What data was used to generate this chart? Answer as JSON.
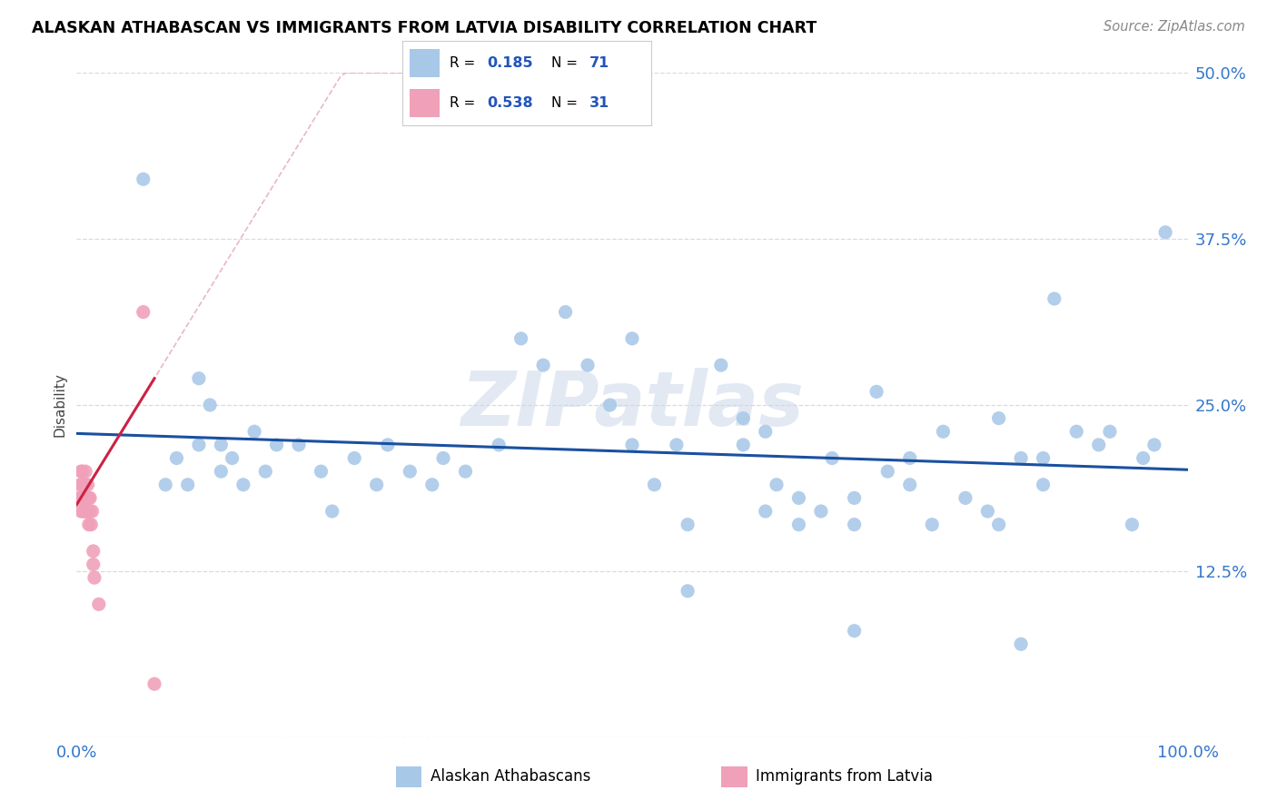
{
  "title": "ALASKAN ATHABASCAN VS IMMIGRANTS FROM LATVIA DISABILITY CORRELATION CHART",
  "source": "Source: ZipAtlas.com",
  "ylabel": "Disability",
  "r_blue": 0.185,
  "n_blue": 71,
  "r_pink": 0.538,
  "n_pink": 31,
  "blue_scatter_color": "#a8c8e8",
  "pink_scatter_color": "#f0a0b8",
  "trendline_blue_color": "#1a50a0",
  "trendline_pink_color": "#cc2244",
  "trendline_pink_dashed_color": "#e8b0bc",
  "legend_text_color": "#2255bb",
  "axis_tick_color": "#3377cc",
  "watermark": "ZIPatlas",
  "bg_color": "#ffffff",
  "grid_color": "#d4d4d4",
  "blue_points": [
    [
      0.06,
      0.42
    ],
    [
      0.08,
      0.19
    ],
    [
      0.09,
      0.21
    ],
    [
      0.1,
      0.19
    ],
    [
      0.11,
      0.22
    ],
    [
      0.11,
      0.27
    ],
    [
      0.12,
      0.25
    ],
    [
      0.13,
      0.22
    ],
    [
      0.13,
      0.2
    ],
    [
      0.14,
      0.21
    ],
    [
      0.15,
      0.19
    ],
    [
      0.16,
      0.23
    ],
    [
      0.17,
      0.2
    ],
    [
      0.18,
      0.22
    ],
    [
      0.2,
      0.22
    ],
    [
      0.22,
      0.2
    ],
    [
      0.23,
      0.17
    ],
    [
      0.25,
      0.21
    ],
    [
      0.27,
      0.19
    ],
    [
      0.28,
      0.22
    ],
    [
      0.3,
      0.2
    ],
    [
      0.32,
      0.19
    ],
    [
      0.33,
      0.21
    ],
    [
      0.35,
      0.2
    ],
    [
      0.38,
      0.22
    ],
    [
      0.4,
      0.3
    ],
    [
      0.42,
      0.28
    ],
    [
      0.44,
      0.32
    ],
    [
      0.46,
      0.28
    ],
    [
      0.48,
      0.25
    ],
    [
      0.5,
      0.22
    ],
    [
      0.5,
      0.3
    ],
    [
      0.52,
      0.19
    ],
    [
      0.54,
      0.22
    ],
    [
      0.55,
      0.16
    ],
    [
      0.55,
      0.11
    ],
    [
      0.58,
      0.28
    ],
    [
      0.6,
      0.24
    ],
    [
      0.6,
      0.22
    ],
    [
      0.62,
      0.23
    ],
    [
      0.63,
      0.19
    ],
    [
      0.65,
      0.16
    ],
    [
      0.65,
      0.18
    ],
    [
      0.67,
      0.17
    ],
    [
      0.68,
      0.21
    ],
    [
      0.7,
      0.16
    ],
    [
      0.7,
      0.18
    ],
    [
      0.72,
      0.26
    ],
    [
      0.73,
      0.2
    ],
    [
      0.75,
      0.19
    ],
    [
      0.75,
      0.21
    ],
    [
      0.77,
      0.16
    ],
    [
      0.78,
      0.23
    ],
    [
      0.8,
      0.18
    ],
    [
      0.82,
      0.17
    ],
    [
      0.83,
      0.24
    ],
    [
      0.83,
      0.16
    ],
    [
      0.85,
      0.21
    ],
    [
      0.87,
      0.21
    ],
    [
      0.87,
      0.19
    ],
    [
      0.88,
      0.33
    ],
    [
      0.9,
      0.23
    ],
    [
      0.92,
      0.22
    ],
    [
      0.93,
      0.23
    ],
    [
      0.95,
      0.16
    ],
    [
      0.96,
      0.21
    ],
    [
      0.97,
      0.22
    ],
    [
      0.98,
      0.38
    ],
    [
      0.62,
      0.17
    ],
    [
      0.7,
      0.08
    ],
    [
      0.85,
      0.07
    ]
  ],
  "pink_points": [
    [
      0.002,
      0.18
    ],
    [
      0.003,
      0.19
    ],
    [
      0.004,
      0.17
    ],
    [
      0.004,
      0.2
    ],
    [
      0.005,
      0.18
    ],
    [
      0.005,
      0.2
    ],
    [
      0.005,
      0.19
    ],
    [
      0.006,
      0.17
    ],
    [
      0.006,
      0.18
    ],
    [
      0.007,
      0.19
    ],
    [
      0.007,
      0.18
    ],
    [
      0.007,
      0.17
    ],
    [
      0.008,
      0.19
    ],
    [
      0.008,
      0.2
    ],
    [
      0.008,
      0.18
    ],
    [
      0.009,
      0.18
    ],
    [
      0.009,
      0.17
    ],
    [
      0.01,
      0.19
    ],
    [
      0.01,
      0.17
    ],
    [
      0.011,
      0.18
    ],
    [
      0.011,
      0.16
    ],
    [
      0.012,
      0.17
    ],
    [
      0.012,
      0.18
    ],
    [
      0.013,
      0.16
    ],
    [
      0.014,
      0.17
    ],
    [
      0.015,
      0.13
    ],
    [
      0.015,
      0.14
    ],
    [
      0.016,
      0.12
    ],
    [
      0.02,
      0.1
    ],
    [
      0.06,
      0.32
    ],
    [
      0.07,
      0.04
    ]
  ]
}
